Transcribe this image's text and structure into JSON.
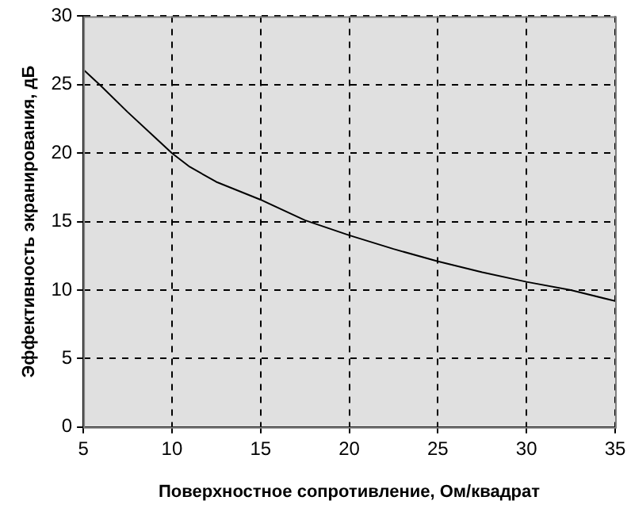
{
  "chart_data": {
    "type": "line",
    "xlabel": "Поверхностное сопротивление, Ом/квадрат",
    "ylabel": "Эффективность экранирования, дБ",
    "x": [
      5,
      6,
      7.5,
      9,
      10,
      11,
      12.5,
      15,
      17.5,
      20,
      22.5,
      25,
      27.5,
      30,
      32.5,
      35
    ],
    "series": [
      {
        "color": "#000000",
        "values": [
          26.1,
          24.9,
          23.0,
          21.2,
          20.0,
          19.0,
          17.9,
          16.6,
          15.1,
          14.0,
          13.0,
          12.1,
          11.3,
          10.6,
          10.0,
          9.2
        ]
      }
    ],
    "xlim": [
      5,
      35
    ],
    "xticks": [
      5,
      10,
      15,
      20,
      25,
      30,
      35
    ],
    "ylim": [
      0,
      30
    ],
    "yticks": [
      0,
      5,
      10,
      15,
      20,
      25,
      30
    ],
    "grid": true,
    "legend": false,
    "marker": "none",
    "line_style": "solid"
  }
}
